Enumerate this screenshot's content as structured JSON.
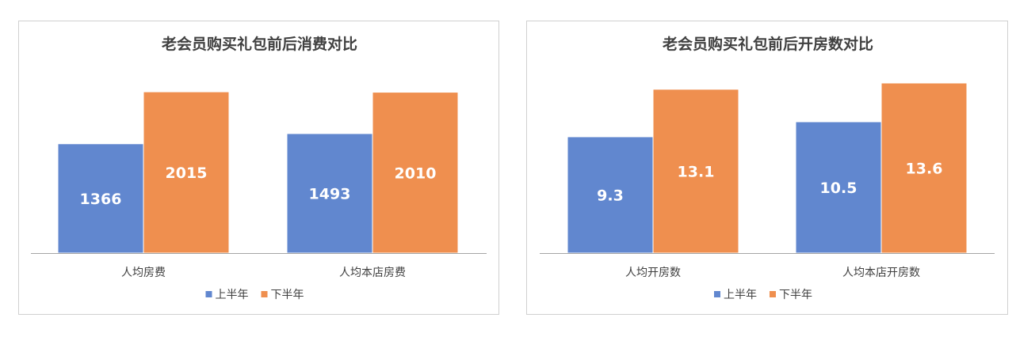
{
  "colors": {
    "series1": "#6187CF",
    "series2": "#EF8F4F",
    "axis": "#a6a6a6"
  },
  "chart_data": [
    {
      "type": "bar",
      "title": "老会员购买礼包前后消费对比",
      "categories": [
        "人均房费",
        "人均本店房费"
      ],
      "series": [
        {
          "name": "上半年",
          "values": [
            1366,
            1493
          ]
        },
        {
          "name": "下半年",
          "values": [
            2015,
            2010
          ]
        }
      ],
      "ylim": [
        0,
        2500
      ],
      "grid": false,
      "legend_position": "bottom"
    },
    {
      "type": "bar",
      "title": "老会员购买礼包前后开房数对比",
      "categories": [
        "人均开房数",
        "人均本店开房数"
      ],
      "series": [
        {
          "name": "上半年",
          "values": [
            9.3,
            10.5
          ]
        },
        {
          "name": "下半年",
          "values": [
            13.1,
            13.6
          ]
        }
      ],
      "ylim": [
        0,
        16
      ],
      "grid": false,
      "legend_position": "bottom"
    }
  ]
}
